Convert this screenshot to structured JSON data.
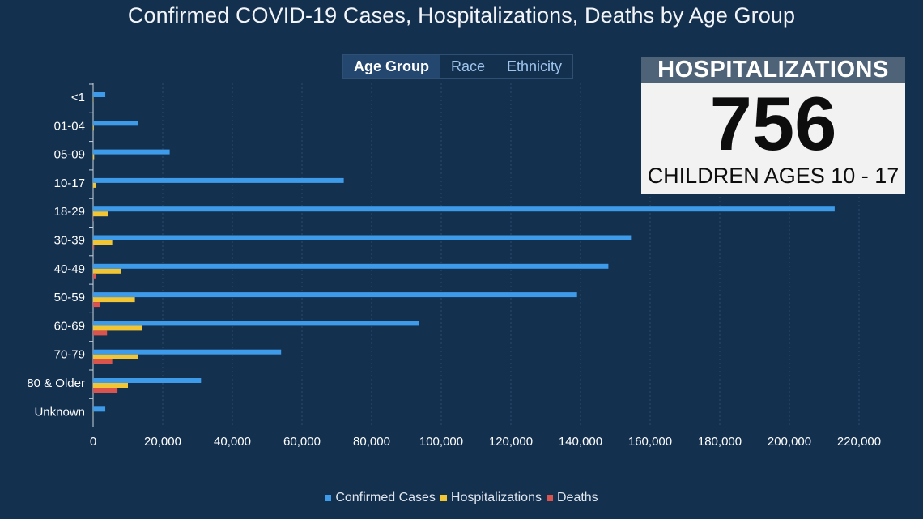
{
  "title": "Confirmed COVID-19 Cases, Hospitalizations, Deaths by Age Group",
  "tabs": [
    {
      "label": "Age Group",
      "active": true
    },
    {
      "label": "Race",
      "active": false
    },
    {
      "label": "Ethnicity",
      "active": false
    }
  ],
  "callout": {
    "heading": "HOSPITALIZATIONS",
    "number": "756",
    "subtitle": "CHILDREN AGES 10 - 17"
  },
  "colors": {
    "background": "#14304f",
    "confirmed": "#3d9be9",
    "hospitalizations": "#f2c534",
    "deaths": "#d9534f"
  },
  "chart_data": {
    "type": "bar",
    "orientation": "horizontal",
    "categories": [
      "<1",
      "01-04",
      "05-09",
      "10-17",
      "18-29",
      "30-39",
      "40-49",
      "50-59",
      "60-69",
      "70-79",
      "80 & Older",
      "Unknown"
    ],
    "series": [
      {
        "name": "Confirmed Cases",
        "values": [
          3500,
          13000,
          22000,
          72000,
          213000,
          154500,
          148000,
          139000,
          93500,
          54000,
          31000,
          3500
        ]
      },
      {
        "name": "Hospitalizations",
        "values": [
          100,
          200,
          300,
          756,
          4200,
          5500,
          8000,
          12000,
          14000,
          13000,
          10000,
          50
        ]
      },
      {
        "name": "Deaths",
        "values": [
          0,
          0,
          0,
          10,
          100,
          300,
          700,
          2000,
          4000,
          5500,
          7000,
          0
        ]
      }
    ],
    "xlim": [
      0,
      230000
    ],
    "xticks": [
      0,
      20000,
      40000,
      60000,
      80000,
      100000,
      120000,
      140000,
      160000,
      180000,
      200000,
      220000
    ],
    "xtick_labels": [
      "0",
      "20,000",
      "40,000",
      "60,000",
      "80,000",
      "100,000",
      "120,000",
      "140,000",
      "160,000",
      "180,000",
      "200,000",
      "220,000"
    ],
    "grid": "vertical",
    "legend_position": "bottom"
  }
}
